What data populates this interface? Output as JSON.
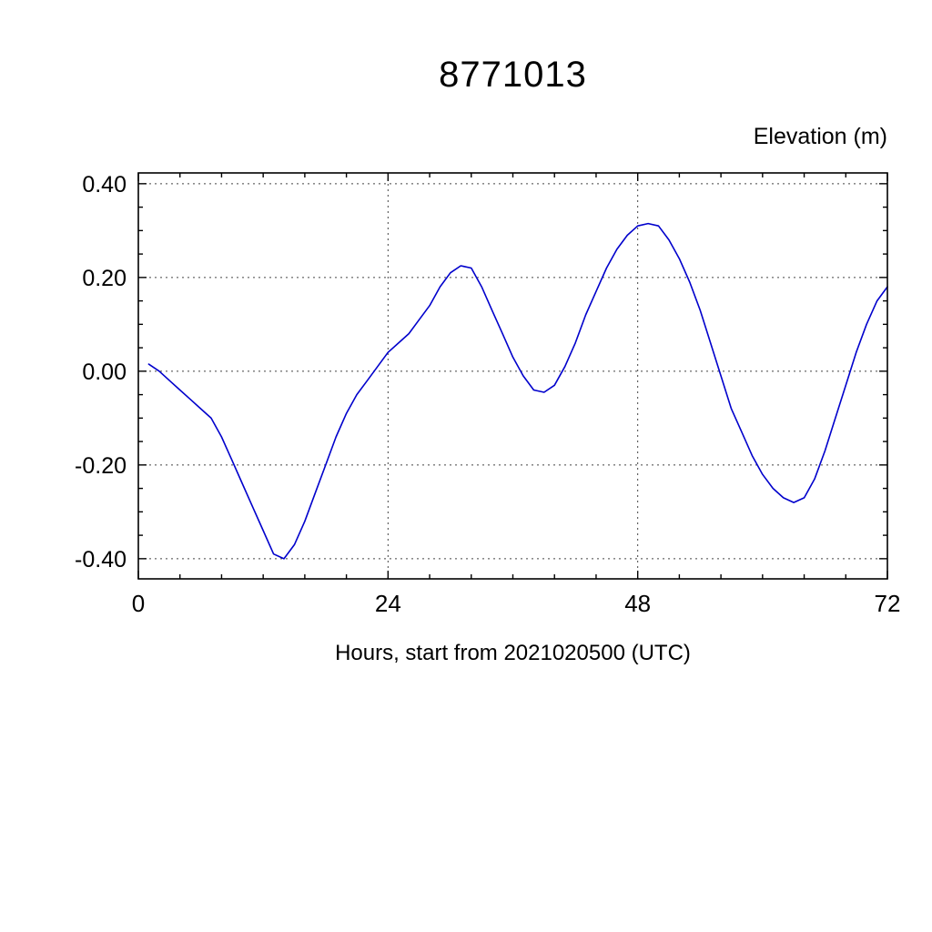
{
  "chart_data": {
    "type": "line",
    "title": "8771013",
    "ylabel": "Elevation (m)",
    "xlabel": "Hours, start from 2021020500 (UTC)",
    "line_color": "#0000cc",
    "grid": "dotted",
    "legend": "none",
    "xlim": [
      0,
      72
    ],
    "ylim": [
      -0.443,
      0.423
    ],
    "xticks": [
      0,
      24,
      48,
      72
    ],
    "xtick_labels": [
      "0",
      "24",
      "48",
      "72"
    ],
    "yticks": [
      -0.4,
      -0.2,
      0.0,
      0.2,
      0.4
    ],
    "ytick_labels": [
      "-0.40",
      "-0.20",
      "0.00",
      "0.20",
      "0.40"
    ],
    "x_minor_step": 4,
    "y_minor_step": 0.05,
    "grid_x": [
      24,
      48
    ],
    "grid_y": [
      -0.4,
      -0.2,
      0.0,
      0.2,
      0.4
    ],
    "series": [
      {
        "name": "elevation",
        "color": "#0000cc",
        "x": [
          1,
          2,
          3,
          4,
          5,
          6,
          7,
          8,
          9,
          10,
          11,
          12,
          13,
          14,
          15,
          16,
          17,
          18,
          19,
          20,
          21,
          22,
          23,
          24,
          25,
          26,
          27,
          28,
          29,
          30,
          31,
          32,
          33,
          34,
          35,
          36,
          37,
          38,
          39,
          40,
          41,
          42,
          43,
          44,
          45,
          46,
          47,
          48,
          49,
          50,
          51,
          52,
          53,
          54,
          55,
          56,
          57,
          58,
          59,
          60,
          61,
          62,
          63,
          64,
          65,
          66,
          67,
          68,
          69,
          70,
          71,
          72
        ],
        "values": [
          0.015,
          0.0,
          -0.02,
          -0.04,
          -0.06,
          -0.08,
          -0.1,
          -0.14,
          -0.19,
          -0.24,
          -0.29,
          -0.34,
          -0.39,
          -0.4,
          -0.37,
          -0.32,
          -0.26,
          -0.2,
          -0.14,
          -0.09,
          -0.05,
          -0.02,
          0.01,
          0.04,
          0.06,
          0.08,
          0.11,
          0.14,
          0.18,
          0.21,
          0.225,
          0.22,
          0.18,
          0.13,
          0.08,
          0.03,
          -0.01,
          -0.04,
          -0.045,
          -0.03,
          0.01,
          0.06,
          0.12,
          0.17,
          0.22,
          0.26,
          0.29,
          0.31,
          0.315,
          0.31,
          0.28,
          0.24,
          0.19,
          0.13,
          0.06,
          -0.01,
          -0.08,
          -0.13,
          -0.18,
          -0.22,
          -0.25,
          -0.27,
          -0.28,
          -0.27,
          -0.23,
          -0.17,
          -0.1,
          -0.03,
          0.04,
          0.1,
          0.15,
          0.18
        ]
      }
    ]
  }
}
